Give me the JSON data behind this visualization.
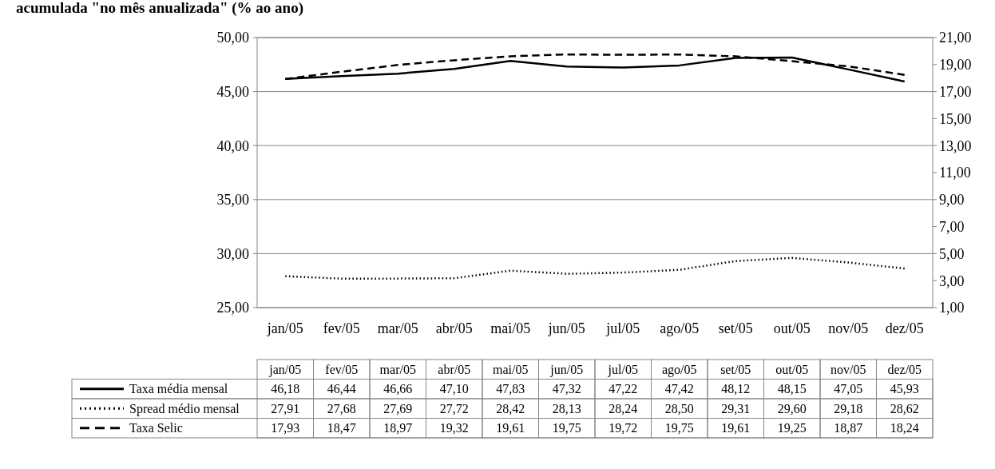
{
  "chart_data": {
    "type": "line",
    "title": "acumulada \"no mês anualizada\" (% ao ano)",
    "categories": [
      "jan/05",
      "fev/05",
      "mar/05",
      "abr/05",
      "mai/05",
      "jun/05",
      "jul/05",
      "ago/05",
      "set/05",
      "out/05",
      "nov/05",
      "dez/05"
    ],
    "series": [
      {
        "name": "Taxa média mensal",
        "color": "#000000",
        "line_style": "solid",
        "values": [
          46.18,
          46.44,
          46.66,
          47.1,
          47.83,
          47.32,
          47.22,
          47.42,
          48.12,
          48.15,
          47.05,
          45.93
        ],
        "value_labels": [
          "46,18",
          "46,44",
          "46,66",
          "47,10",
          "47,83",
          "47,32",
          "47,22",
          "47,42",
          "48,12",
          "48,15",
          "47,05",
          "45,93"
        ]
      },
      {
        "name": "Spread médio mensal",
        "color": "#000000",
        "line_style": "dotted",
        "values": [
          27.91,
          27.68,
          27.69,
          27.72,
          28.42,
          28.13,
          28.24,
          28.5,
          29.31,
          29.6,
          29.18,
          28.62
        ],
        "value_labels": [
          "27,91",
          "27,68",
          "27,69",
          "27,72",
          "28,42",
          "28,13",
          "28,24",
          "28,50",
          "29,31",
          "29,60",
          "29,18",
          "28,62"
        ]
      },
      {
        "name": "Taxa Selic",
        "color": "#000000",
        "line_style": "dashed",
        "axis": "y2",
        "values": [
          17.93,
          18.47,
          18.97,
          19.32,
          19.61,
          19.75,
          19.72,
          19.75,
          19.61,
          19.25,
          18.87,
          18.24
        ],
        "value_labels": [
          "17,93",
          "18,47",
          "18,97",
          "19,32",
          "19,61",
          "19,75",
          "19,72",
          "19,75",
          "19,61",
          "19,25",
          "18,87",
          "18,24"
        ]
      }
    ],
    "ylim": [
      25,
      50
    ],
    "yticks": [
      {
        "value": 25,
        "label": "25,00"
      },
      {
        "value": 30,
        "label": "30,00"
      },
      {
        "value": 35,
        "label": "35,00"
      },
      {
        "value": 40,
        "label": "40,00"
      },
      {
        "value": 45,
        "label": "45,00"
      },
      {
        "value": 50,
        "label": "50,00"
      }
    ],
    "y2lim": [
      1,
      21
    ],
    "y2ticks": [
      {
        "value": 1,
        "label": "1,00"
      },
      {
        "value": 3,
        "label": "3,00"
      },
      {
        "value": 5,
        "label": "5,00"
      },
      {
        "value": 7,
        "label": "7,00"
      },
      {
        "value": 9,
        "label": "9,00"
      },
      {
        "value": 11,
        "label": "11,00"
      },
      {
        "value": 13,
        "label": "13,00"
      },
      {
        "value": 15,
        "label": "15,00"
      },
      {
        "value": 17,
        "label": "17,00"
      },
      {
        "value": 19,
        "label": "19,00"
      },
      {
        "value": 21,
        "label": "21,00"
      }
    ],
    "grid": "y",
    "legend": "bottom",
    "marker": "none"
  }
}
